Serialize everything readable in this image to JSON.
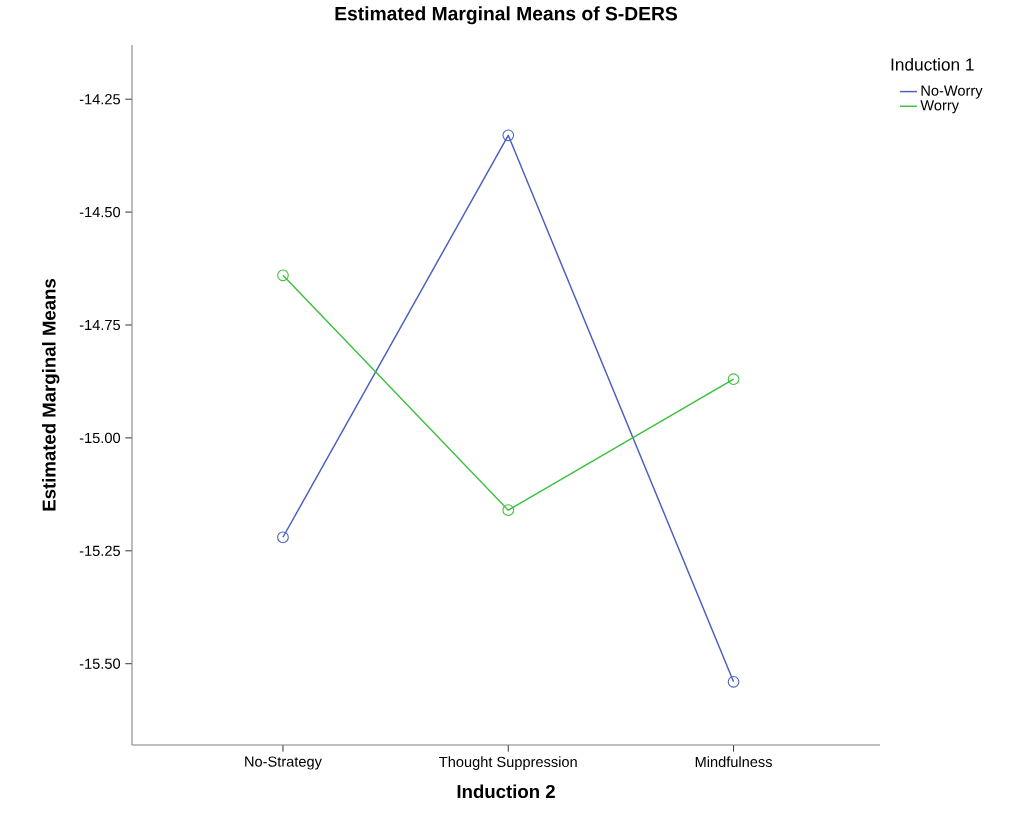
{
  "chart_data": {
    "type": "line",
    "title": "Estimated Marginal Means of S-DERS",
    "xlabel": "Induction 2",
    "ylabel": "Estimated Marginal Means",
    "legend_title": "Induction 1",
    "categories": [
      "No-Strategy",
      "Thought Suppression",
      "Mindfulness"
    ],
    "series": [
      {
        "name": "No-Worry",
        "color": "#4a5fc1",
        "values": [
          -15.22,
          -14.33,
          -15.54
        ]
      },
      {
        "name": "Worry",
        "color": "#3cc13c",
        "values": [
          -14.64,
          -15.16,
          -14.87
        ]
      }
    ],
    "ylim": [
      -15.68,
      -14.13
    ],
    "yticks": [
      {
        "value": -14.25,
        "label": "-14.25"
      },
      {
        "value": -14.5,
        "label": "-14.50"
      },
      {
        "value": -14.75,
        "label": "-14.75"
      },
      {
        "value": -15.0,
        "label": "-15.00"
      },
      {
        "value": -15.25,
        "label": "-15.25"
      },
      {
        "value": -15.5,
        "label": "-15.50"
      }
    ],
    "grid": false,
    "legend": "top right",
    "marker": "circle",
    "line_style": "solid"
  }
}
